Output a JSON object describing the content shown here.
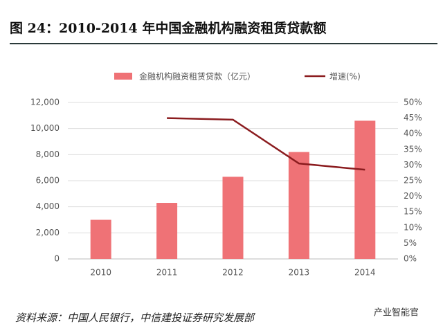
{
  "chart_data": {
    "type": "bar",
    "title": "图 24：2010-2014 年中国金融机构融资租赁贷款额",
    "source": "资料来源：中国人民银行，中信建投证券研究发展部",
    "watermark": "产业智能官",
    "categories": [
      "2010",
      "2011",
      "2012",
      "2013",
      "2014"
    ],
    "series": [
      {
        "name": "金融机构融资租赁贷款（亿元）",
        "type": "bar",
        "color": "#ef7276",
        "values": [
          3000,
          4300,
          6300,
          8200,
          10600
        ]
      },
      {
        "name": "增速(%)",
        "type": "line",
        "axis": "y2",
        "color": "#8b1c1f",
        "values": [
          null,
          45,
          44.5,
          30.5,
          28.5
        ]
      }
    ],
    "ylim": [
      0,
      12000
    ],
    "yticks": [
      {
        "value": 0,
        "label": "0"
      },
      {
        "value": 2000,
        "label": "2,000"
      },
      {
        "value": 4000,
        "label": "4,000"
      },
      {
        "value": 6000,
        "label": "6,000"
      },
      {
        "value": 8000,
        "label": "8,000"
      },
      {
        "value": 10000,
        "label": "10,000"
      },
      {
        "value": 12000,
        "label": "12,000"
      }
    ],
    "y2lim": [
      0,
      50
    ],
    "y2ticks": [
      {
        "value": 0,
        "label": "0%"
      },
      {
        "value": 5,
        "label": "5%"
      },
      {
        "value": 10,
        "label": "10%"
      },
      {
        "value": 15,
        "label": "15%"
      },
      {
        "value": 20,
        "label": "20%"
      },
      {
        "value": 25,
        "label": "25%"
      },
      {
        "value": 30,
        "label": "30%"
      },
      {
        "value": 35,
        "label": "35%"
      },
      {
        "value": 40,
        "label": "40%"
      },
      {
        "value": 45,
        "label": "45%"
      },
      {
        "value": 50,
        "label": "50%"
      }
    ],
    "grid": true
  }
}
